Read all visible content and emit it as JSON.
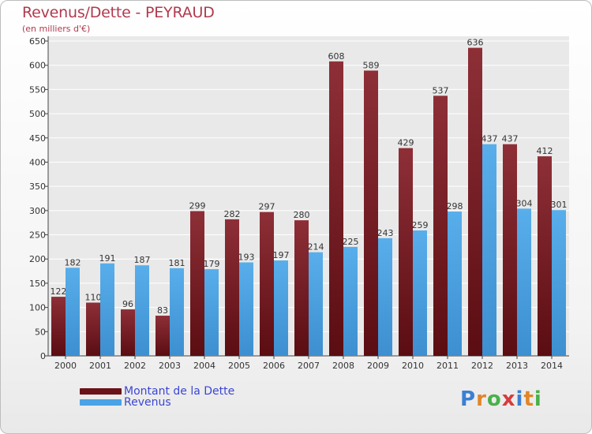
{
  "title": "Revenus/Dette - PEYRAUD",
  "subtitle": "(en milliers d'€)",
  "brand": "Proxiti",
  "colors": {
    "dette": "#7a1e24",
    "revenus": "#4aa3e6",
    "axis": "#444444",
    "grid": "#ffffff"
  },
  "chart_data": {
    "type": "bar",
    "title": "Revenus/Dette - PEYRAUD",
    "subtitle": "(en milliers d'€)",
    "categories": [
      "2000",
      "2001",
      "2002",
      "2003",
      "2004",
      "2005",
      "2006",
      "2007",
      "2008",
      "2009",
      "2010",
      "2011",
      "2012",
      "2013",
      "2014"
    ],
    "series": [
      {
        "name": "Montant de la Dette",
        "values": [
          122,
          110,
          96,
          83,
          299,
          282,
          297,
          280,
          608,
          589,
          429,
          537,
          636,
          437,
          412
        ]
      },
      {
        "name": "Revenus",
        "values": [
          182,
          191,
          187,
          181,
          179,
          193,
          197,
          214,
          225,
          243,
          259,
          298,
          437,
          304,
          301
        ]
      }
    ],
    "ylim": [
      0,
      650
    ],
    "yticks": [
      0,
      50,
      100,
      150,
      200,
      250,
      300,
      350,
      400,
      450,
      500,
      550,
      600,
      650
    ],
    "grid": true,
    "legend": "bottom-left",
    "data_labels": true
  }
}
